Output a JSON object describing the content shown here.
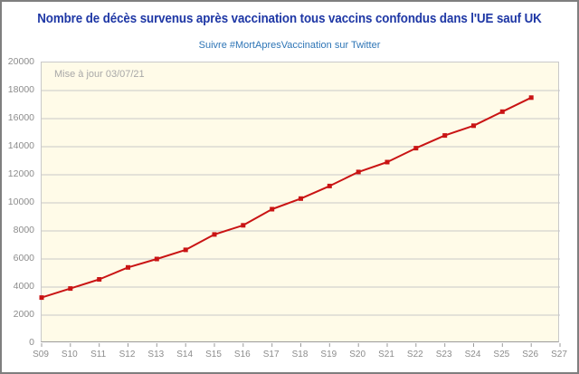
{
  "header": {
    "title": "Nombre de décès survenus après vaccination tous vaccins confondus dans l'UE sauf UK",
    "subtitle": "Suivre #MortApresVaccination sur Twitter"
  },
  "chart_data": {
    "type": "line",
    "title": "Nombre de décès survenus après vaccination tous vaccins confondus dans l'UE sauf UK",
    "subtitle": "Suivre #MortApresVaccination sur Twitter",
    "annotation": "Mise à jour 03/07/21",
    "categories": [
      "S09",
      "S10",
      "S11",
      "S12",
      "S13",
      "S14",
      "S15",
      "S16",
      "S17",
      "S18",
      "S19",
      "S20",
      "S21",
      "S22",
      "S23",
      "S24",
      "S25",
      "S26",
      "S27"
    ],
    "values": [
      3250,
      3900,
      4550,
      5400,
      6000,
      6650,
      7750,
      8400,
      9550,
      10300,
      11200,
      12200,
      12900,
      13900,
      14800,
      15500,
      16500,
      17500
    ],
    "xlabel": "",
    "ylabel": "",
    "ylim": [
      0,
      20000
    ],
    "ytick_step": 2000,
    "grid": "horizontal",
    "legend": "none",
    "marker": "square",
    "note": "last category S27 has no data point"
  },
  "colors": {
    "title": "#1E37A5",
    "subtitle": "#2E75B6",
    "plot_background": "#FFFBE8",
    "gridline": "#C9C9C9",
    "axis_text": "#8C8C8C",
    "annotation_text": "#A8A8A8",
    "line": "#C91414",
    "frame_border": "#7F7F7F"
  }
}
